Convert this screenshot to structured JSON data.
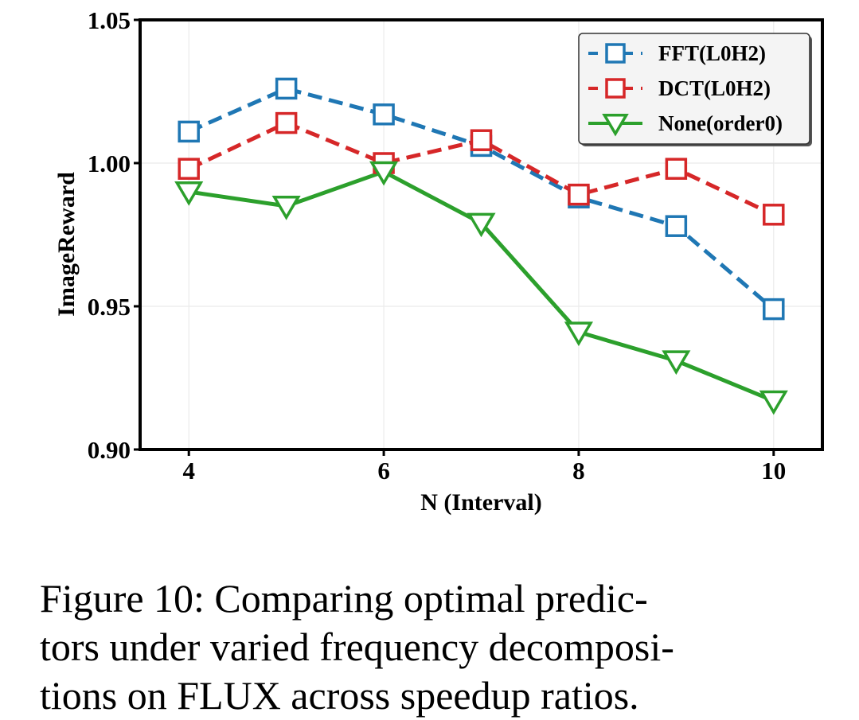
{
  "chart_data": {
    "type": "line",
    "title": "",
    "xlabel": "N (Interval)",
    "ylabel": "ImageReward",
    "x": [
      4,
      5,
      6,
      7,
      8,
      9,
      10
    ],
    "xticks": [
      4,
      6,
      8,
      10
    ],
    "xtick_labels": [
      "4",
      "6",
      "8",
      "10"
    ],
    "yticks": [
      0.9,
      0.95,
      1.0,
      1.05
    ],
    "ytick_labels": [
      "0.90",
      "0.95",
      "1.00",
      "1.05"
    ],
    "xlim": [
      3.5,
      10.5
    ],
    "ylim": [
      0.9,
      1.05
    ],
    "grid": true,
    "legend_position": "top-right",
    "series": [
      {
        "name": "FFT(L0H2)",
        "color": "#1f77b4",
        "linestyle": "dashed",
        "marker": "square",
        "values": [
          1.011,
          1.026,
          1.017,
          1.006,
          0.988,
          0.978,
          0.949
        ]
      },
      {
        "name": "DCT(L0H2)",
        "color": "#d62728",
        "linestyle": "dashed",
        "marker": "square",
        "values": [
          0.998,
          1.014,
          1.0,
          1.008,
          0.989,
          0.998,
          0.982
        ]
      },
      {
        "name": "None(order0)",
        "color": "#2ca02c",
        "linestyle": "solid",
        "marker": "triangle-down",
        "values": [
          0.99,
          0.985,
          0.997,
          0.979,
          0.941,
          0.931,
          0.917
        ]
      }
    ]
  },
  "caption": {
    "lines": [
      "Figure 10:  Comparing optimal predic-",
      "tors under varied frequency decomposi-",
      "tions on FLUX across speedup ratios."
    ]
  }
}
